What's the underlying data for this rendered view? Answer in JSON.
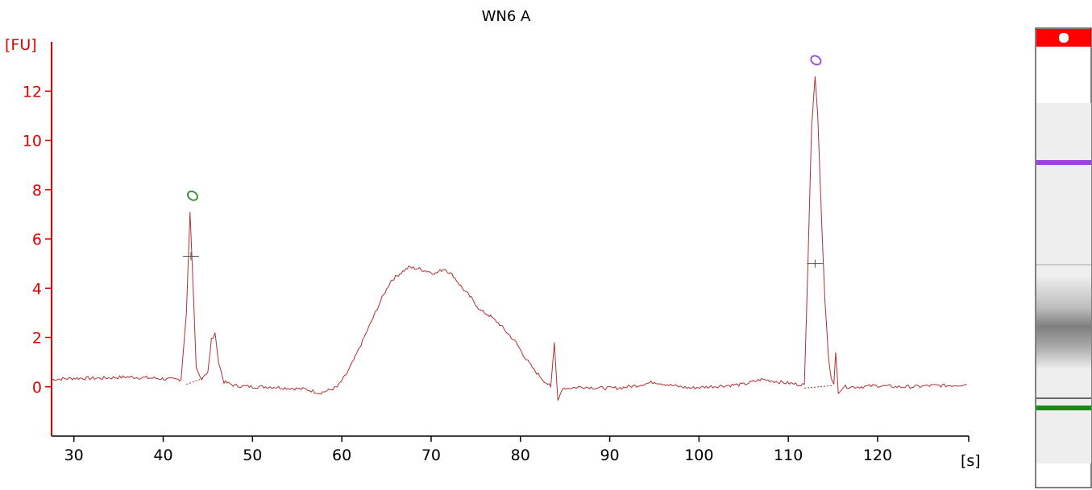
{
  "chart_data": {
    "type": "line",
    "title": "WN6 A",
    "ylabel": "[FU]",
    "xlabel": "[s]",
    "xlim": [
      27.5,
      130.2
    ],
    "ylim": [
      -2.0,
      14.0
    ],
    "x_ticks": [
      30,
      40,
      50,
      60,
      70,
      80,
      90,
      100,
      110,
      120
    ],
    "y_ticks": [
      0,
      2,
      4,
      6,
      8,
      10,
      12
    ],
    "grid": false,
    "series": [
      {
        "color": "#b03030",
        "x": [
          27.5,
          30,
          33,
          36,
          39,
          41,
          42,
          42.6,
          43.0,
          43.3,
          43.7,
          44.3,
          45.0,
          45.4,
          45.8,
          46.2,
          46.8,
          48,
          50,
          52,
          54,
          56,
          57.5,
          58.5,
          59.5,
          60.5,
          61.5,
          62.5,
          63.5,
          64.5,
          65.5,
          66.5,
          67.5,
          68.5,
          69.5,
          70.5,
          71.5,
          72.5,
          73.5,
          74.5,
          75.5,
          76.5,
          77.5,
          78.5,
          79.5,
          80.5,
          81.5,
          82.5,
          83.4,
          83.8,
          84.2,
          84.7,
          85.5,
          87,
          89,
          91,
          93,
          95,
          97,
          99,
          101,
          103,
          105,
          107,
          109,
          111,
          111.8,
          112.2,
          112.6,
          113.0,
          113.3,
          113.7,
          114.1,
          114.5,
          114.8,
          115.1,
          115.3,
          115.6,
          116.2,
          118,
          120,
          122,
          124,
          126,
          128,
          130
        ],
        "y": [
          0.3,
          0.35,
          0.35,
          0.4,
          0.35,
          0.3,
          0.3,
          3.0,
          7.1,
          4.5,
          0.8,
          0.3,
          0.6,
          1.9,
          2.2,
          1.0,
          0.2,
          0.05,
          0.0,
          0.0,
          -0.05,
          -0.1,
          -0.25,
          -0.15,
          0.0,
          0.5,
          1.2,
          2.0,
          2.8,
          3.6,
          4.3,
          4.6,
          4.85,
          4.8,
          4.7,
          4.6,
          4.8,
          4.5,
          4.0,
          3.6,
          3.1,
          2.9,
          2.6,
          2.2,
          1.8,
          1.2,
          0.7,
          0.3,
          0.0,
          1.8,
          -0.6,
          -0.05,
          -0.05,
          0.0,
          -0.05,
          -0.05,
          0.05,
          0.2,
          0.05,
          -0.05,
          0.0,
          0.05,
          0.1,
          0.3,
          0.2,
          0.1,
          0.1,
          5.0,
          10.5,
          12.6,
          11.0,
          7.0,
          3.5,
          1.2,
          0.3,
          0.1,
          1.4,
          -0.2,
          0.0,
          0.0,
          0.05,
          0.0,
          0.0,
          0.05,
          0.05,
          0.1
        ]
      }
    ],
    "peak_markers": [
      {
        "x": 43.2,
        "color": "#2e8b2e"
      },
      {
        "x": 113.0,
        "color": "#a040e0"
      }
    ],
    "baseline_segments": [
      {
        "x": [
          42.6,
          44.5
        ],
        "y": [
          0.1,
          0.35
        ]
      },
      {
        "x": [
          111.8,
          115.0
        ],
        "y": [
          -0.05,
          0.05
        ]
      }
    ],
    "half_height_marks": [
      {
        "x": 43.1,
        "y": 5.3
      },
      {
        "x": 113.0,
        "y": 5.0
      }
    ]
  },
  "gel_lane": {
    "top_marker_color": "#ff0000",
    "band_colors": [
      "#a040e0",
      "#cccccc",
      "#666666",
      "#1a8a1a"
    ]
  }
}
